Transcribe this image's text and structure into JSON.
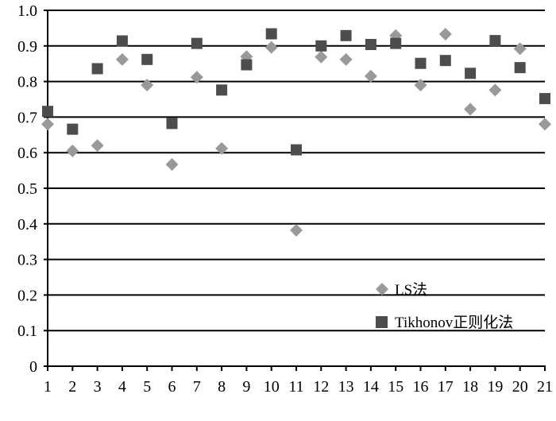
{
  "chart_data": {
    "type": "scatter",
    "title": "",
    "xlabel": "",
    "ylabel": "",
    "x": [
      1,
      2,
      3,
      4,
      5,
      6,
      7,
      8,
      9,
      10,
      11,
      12,
      13,
      14,
      15,
      16,
      17,
      18,
      19,
      20,
      21
    ],
    "xlim": [
      1,
      21
    ],
    "ylim": [
      0,
      1.0
    ],
    "y_ticks": [
      "0",
      "0.1",
      "0.2",
      "0.3",
      "0.4",
      "0.5",
      "0.6",
      "0.7",
      "0.8",
      "0.9",
      "1.0"
    ],
    "x_ticks": [
      "1",
      "2",
      "3",
      "4",
      "5",
      "6",
      "7",
      "8",
      "9",
      "10",
      "11",
      "12",
      "13",
      "14",
      "15",
      "16",
      "17",
      "18",
      "19",
      "20",
      "21"
    ],
    "grid": true,
    "legend_position": "lower-right",
    "series": [
      {
        "name": "LS法",
        "marker": "diamond",
        "color": "#999999",
        "values": [
          0.68,
          0.605,
          0.62,
          0.862,
          0.79,
          0.567,
          0.812,
          0.612,
          0.87,
          0.896,
          0.382,
          0.869,
          0.862,
          0.815,
          0.929,
          0.79,
          0.933,
          0.722,
          0.776,
          0.892,
          0.68
        ]
      },
      {
        "name": "Tikhonov正则化法",
        "marker": "square",
        "color": "#4d4d4d",
        "values": [
          0.716,
          0.666,
          0.836,
          0.914,
          0.862,
          0.682,
          0.907,
          0.776,
          0.847,
          0.934,
          0.608,
          0.9,
          0.929,
          0.904,
          0.907,
          0.851,
          0.859,
          0.823,
          0.915,
          0.839,
          0.752
        ]
      }
    ]
  }
}
